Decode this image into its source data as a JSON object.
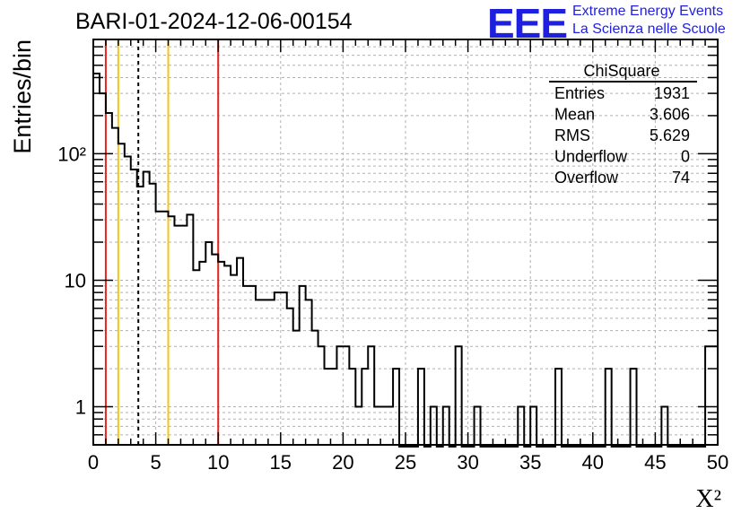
{
  "chart_data": {
    "type": "histogram",
    "title": "BARI-01-2024-12-06-00154",
    "xlabel": "X²",
    "ylabel": "Entries/bin",
    "xlim": [
      0,
      50
    ],
    "ylim": [
      0.5,
      800
    ],
    "log_y": true,
    "grid": true,
    "bin_width": 0.5,
    "x_ticks": [
      "0",
      "5",
      "10",
      "15",
      "20",
      "25",
      "30",
      "35",
      "40",
      "45",
      "50"
    ],
    "y_ticks": [
      {
        "value": 1,
        "label": "1"
      },
      {
        "value": 10,
        "label": "10"
      },
      {
        "value": 100,
        "label": "10²"
      }
    ],
    "bin_contents": [
      430,
      300,
      210,
      160,
      120,
      95,
      75,
      55,
      72,
      58,
      35,
      35,
      32,
      27,
      27,
      33,
      12,
      14,
      20,
      16,
      14,
      13,
      11,
      15,
      9,
      9,
      7,
      7,
      7,
      8,
      8,
      6,
      4,
      9,
      7,
      4,
      3,
      2,
      2,
      3,
      3,
      2,
      1,
      2,
      3,
      1,
      1,
      1,
      2,
      0,
      0,
      0,
      2,
      0.1,
      1,
      0.1,
      1,
      0.1,
      3,
      0.1,
      0.1,
      1,
      0.1,
      0,
      0,
      0,
      0,
      0,
      1,
      0.1,
      1,
      0.1,
      0,
      0,
      2,
      0.1,
      0,
      0,
      0,
      0,
      0,
      0,
      2,
      0.1,
      0,
      0,
      2,
      0.1,
      0,
      0,
      0,
      1,
      0.1,
      0,
      0,
      0,
      0,
      0,
      3,
      3
    ],
    "vertical_lines": [
      {
        "x": 1,
        "color": "#e8231b",
        "style": "solid"
      },
      {
        "x": 2,
        "color": "#f5c518",
        "style": "solid"
      },
      {
        "x": 3.606,
        "color": "#000000",
        "style": "dashed"
      },
      {
        "x": 6,
        "color": "#f5c518",
        "style": "solid"
      },
      {
        "x": 10,
        "color": "#e8231b",
        "style": "solid"
      }
    ],
    "stats_box": {
      "title": "ChiSquare",
      "rows": [
        {
          "label": "Entries",
          "value": "1931"
        },
        {
          "label": "Mean",
          "value": "3.606"
        },
        {
          "label": "RMS",
          "value": "5.629"
        },
        {
          "label": "Underflow",
          "value": "0"
        },
        {
          "label": "Overflow",
          "value": "74"
        }
      ]
    }
  },
  "logo": {
    "mark": "EEE",
    "line1": "Extreme Energy Events",
    "line2": "La Scienza nelle Scuole",
    "color": "#1f1fe0"
  }
}
